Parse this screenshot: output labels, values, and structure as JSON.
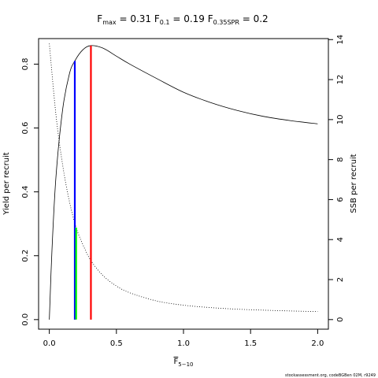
{
  "chart_data": {
    "type": "line",
    "title": {
      "fmax": {
        "name": "F",
        "sub": "max",
        "value": "0.31"
      },
      "f01": {
        "name": "F",
        "sub": "0.1",
        "value": "0.19"
      },
      "fspr": {
        "name": "F",
        "sub": "0.35SPR",
        "value": "0.2"
      }
    },
    "xlabel": {
      "base": "F",
      "sub": "5−10"
    },
    "ylabel_left": "Yield per recruit",
    "ylabel_right": "SSB per recruit",
    "xlim": [
      -0.08,
      2.08
    ],
    "ylim_left": [
      -0.03,
      0.88
    ],
    "ylim_right": [
      -0.48,
      14.05
    ],
    "x_ticks": [
      {
        "value": 0.0,
        "label": "0.0"
      },
      {
        "value": 0.5,
        "label": "0.5"
      },
      {
        "value": 1.0,
        "label": "1.0"
      },
      {
        "value": 1.5,
        "label": "1.5"
      },
      {
        "value": 2.0,
        "label": "2.0"
      }
    ],
    "y_left_ticks": [
      {
        "value": 0.0,
        "label": "0.0"
      },
      {
        "value": 0.2,
        "label": "0.2"
      },
      {
        "value": 0.4,
        "label": "0.4"
      },
      {
        "value": 0.6,
        "label": "0.6"
      },
      {
        "value": 0.8,
        "label": "0.8"
      }
    ],
    "y_right_ticks": [
      {
        "value": 0,
        "label": "0"
      },
      {
        "value": 2,
        "label": "2"
      },
      {
        "value": 4,
        "label": "4"
      },
      {
        "value": 6,
        "label": "6"
      },
      {
        "value": 8,
        "label": "8"
      },
      {
        "value": 10,
        "label": "10"
      },
      {
        "value": 12,
        "label": "12"
      },
      {
        "value": 14,
        "label": "14"
      }
    ],
    "series": [
      {
        "axis": "left",
        "style": "solid",
        "color": "#000000",
        "x": [
          0.0,
          0.02,
          0.05,
          0.1,
          0.15,
          0.19,
          0.25,
          0.31,
          0.4,
          0.5,
          0.6,
          0.8,
          1.0,
          1.2,
          1.4,
          1.6,
          1.8,
          2.0
        ],
        "y": [
          0.0,
          0.22,
          0.45,
          0.66,
          0.77,
          0.81,
          0.845,
          0.858,
          0.85,
          0.825,
          0.8,
          0.755,
          0.712,
          0.68,
          0.655,
          0.636,
          0.623,
          0.613
        ]
      },
      {
        "axis": "right",
        "style": "dotted",
        "color": "#000000",
        "x": [
          0.0,
          0.05,
          0.1,
          0.15,
          0.2,
          0.25,
          0.31,
          0.4,
          0.5,
          0.6,
          0.8,
          1.0,
          1.2,
          1.4,
          1.6,
          1.8,
          2.0
        ],
        "y": [
          13.8,
          10.2,
          7.7,
          5.9,
          4.6,
          3.75,
          2.95,
          2.2,
          1.68,
          1.34,
          0.93,
          0.72,
          0.6,
          0.52,
          0.47,
          0.43,
          0.4
        ]
      }
    ],
    "reference_lines": [
      {
        "name": "f01-line",
        "x": 0.19,
        "axis": "left",
        "ymax": 0.81,
        "color": "#0000ff"
      },
      {
        "name": "fspr-line",
        "x": 0.2,
        "axis": "right",
        "ymax": 4.6,
        "color": "#00ff00"
      },
      {
        "name": "fmax-line",
        "x": 0.31,
        "axis": "left",
        "ymax": 0.858,
        "color": "#ff0000"
      }
    ]
  },
  "footer": "stockassessment.org, codeBGBen 02M, r9249"
}
